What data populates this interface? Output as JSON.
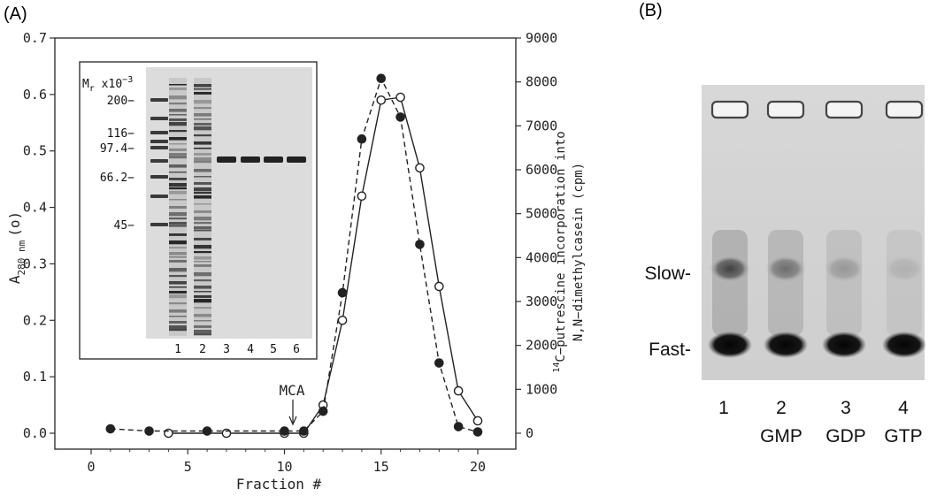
{
  "panel_a_label": "(A)",
  "panel_b_label": "(B)",
  "chart_data": {
    "type": "line",
    "xlabel": "Fraction #",
    "ylabel_left": "A280 nm (o)",
    "ylabel_left_main": "A",
    "ylabel_left_sub": "280 nm",
    "ylabel_left_suffix": "(o)",
    "ylabel_right_line1": "14C−putrescine incorporation into",
    "ylabel_right_line1_sup": "14",
    "ylabel_right_line1_rest": "C−putrescine incorporation into",
    "ylabel_right_line2": "N,N−dimethylcasein (cpm)",
    "xlim": [
      -2,
      22
    ],
    "x_ticks": [
      "0",
      "5",
      "10",
      "15",
      "20"
    ],
    "ylim_left": [
      0,
      0.7
    ],
    "y_left_ticks": [
      "0.0",
      "0.1",
      "0.2",
      "0.3",
      "0.4",
      "0.5",
      "0.6",
      "0.7"
    ],
    "ylim_right": [
      0,
      9000
    ],
    "y_right_ticks": [
      "0",
      "1000",
      "2000",
      "3000",
      "4000",
      "5000",
      "6000",
      "7000",
      "8000",
      "9000"
    ],
    "annotation": "MCA",
    "annotation_x": 10.3,
    "series": [
      {
        "axis": "left",
        "marker": "open",
        "line": "solid",
        "x": [
          4,
          7,
          10,
          11,
          12,
          13,
          14,
          15,
          16,
          17,
          18,
          19,
          20
        ],
        "y": [
          0.0,
          0.0,
          0.0,
          0.0,
          0.05,
          0.2,
          0.42,
          0.59,
          0.595,
          0.47,
          0.26,
          0.075,
          0.022
        ]
      },
      {
        "axis": "right",
        "marker": "filled",
        "line": "dashed",
        "x": [
          1,
          3,
          6,
          10,
          11,
          12,
          13,
          14,
          15,
          16,
          17,
          18,
          19,
          20
        ],
        "y": [
          100,
          50,
          50,
          50,
          50,
          500,
          3200,
          6700,
          8080,
          7200,
          4300,
          1600,
          150,
          30
        ]
      }
    ]
  },
  "inset": {
    "mr_label": "Mr x10",
    "mr_main": "M",
    "mr_sub": "r",
    "mr_x": " x10",
    "mr_exp": "−3",
    "markers": [
      "200−",
      "116−",
      "97.4−",
      "66.2−",
      "45−"
    ],
    "lanes": [
      "1",
      "2",
      "3",
      "4",
      "5",
      "6"
    ]
  },
  "panel_b": {
    "bands": [
      "Slow-",
      "Fast-"
    ],
    "lane_numbers": [
      "1",
      "2",
      "3",
      "4"
    ],
    "lane_labels": [
      "",
      "GMP",
      "GDP",
      "GTP"
    ]
  }
}
